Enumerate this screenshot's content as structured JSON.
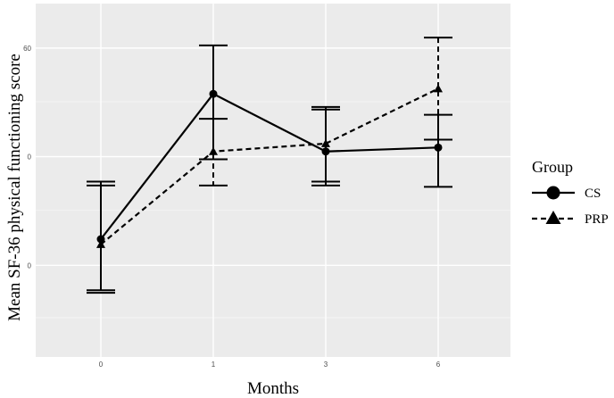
{
  "chart_data": {
    "type": "line",
    "xlabel": "Months",
    "ylabel": "Mean SF-36 physical functioning score",
    "categories": [
      "0",
      "1",
      "3",
      "6"
    ],
    "y_ticks": [
      "0",
      "0",
      "60"
    ],
    "legend": {
      "title": "Group",
      "position": "right"
    },
    "grid": true,
    "series": [
      {
        "name": "CS",
        "line_style": "solid",
        "marker": "circle",
        "values": [
          34.0,
          45.1,
          40.7,
          41.0
        ],
        "error_low": [
          30.1,
          40.1,
          38.4,
          38.0
        ],
        "error_high": [
          38.4,
          48.8,
          44.1,
          43.5
        ]
      },
      {
        "name": "PRP",
        "line_style": "dashed",
        "marker": "triangle",
        "values": [
          33.6,
          40.7,
          41.3,
          45.5
        ],
        "error_low": [
          29.9,
          38.1,
          38.1,
          41.6
        ],
        "error_high": [
          38.1,
          43.2,
          43.9,
          49.4
        ]
      }
    ]
  }
}
